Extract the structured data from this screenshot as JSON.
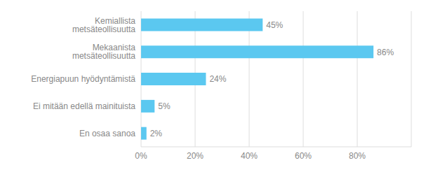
{
  "chart_data": {
    "type": "bar",
    "orientation": "horizontal",
    "categories": [
      "En osaa sanoa",
      "Ei mitään edellä mainituista",
      "Energiapuun hyödyntämistä",
      "Mekaanista metsäteollisuutta",
      "Kemiallista metsäteollisuutta"
    ],
    "values": [
      2,
      5,
      24,
      86,
      45
    ],
    "value_labels": [
      "2%",
      "5%",
      "24%",
      "86%",
      "45%"
    ],
    "color": "#5bc8f0",
    "xlim": [
      0,
      100
    ],
    "xticks": [
      {
        "value": 0,
        "label": "0%"
      },
      {
        "value": 20,
        "label": "20%"
      },
      {
        "value": 40,
        "label": "40%"
      },
      {
        "value": 60,
        "label": "60%"
      },
      {
        "value": 80,
        "label": "80%"
      }
    ],
    "grid": true,
    "data_labels": true
  }
}
